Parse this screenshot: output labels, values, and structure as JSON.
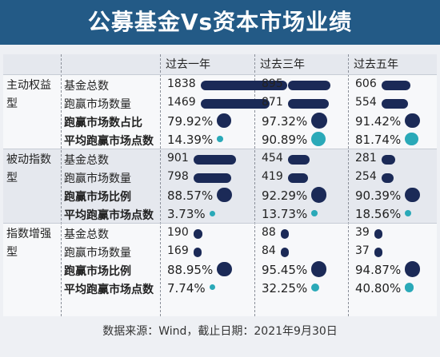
{
  "title": "公募基金Vs资本市场业绩",
  "source": "数据来源：Wind，截止日期：2021年9月30日",
  "chart_data": {
    "type": "table",
    "periods": [
      "过去一年",
      "过去三年",
      "过去五年"
    ],
    "groups": [
      {
        "name": "主动权益型",
        "rows": [
          {
            "metric": "基金总数",
            "kind": "count",
            "values": [
              1838,
              895,
              606
            ],
            "labels": [
              "1838",
              "895",
              "606"
            ]
          },
          {
            "metric": "跑赢市场数量",
            "kind": "count",
            "values": [
              1469,
              871,
              554
            ],
            "labels": [
              "1469",
              "871",
              "554"
            ]
          },
          {
            "metric": "跑赢市场数占比",
            "kind": "ratio",
            "values": [
              79.92,
              97.32,
              91.42
            ],
            "labels": [
              "79.92%",
              "97.32%",
              "91.42%"
            ]
          },
          {
            "metric": "平均跑赢市场点数",
            "kind": "points",
            "values": [
              14.39,
              90.89,
              81.74
            ],
            "labels": [
              "14.39%",
              "90.89%",
              "81.74%"
            ]
          }
        ]
      },
      {
        "name": "被动指数型",
        "rows": [
          {
            "metric": "基金总数",
            "kind": "count",
            "values": [
              901,
              454,
              281
            ],
            "labels": [
              "901",
              "454",
              "281"
            ]
          },
          {
            "metric": "跑赢市场数量",
            "kind": "count",
            "values": [
              798,
              419,
              254
            ],
            "labels": [
              "798",
              "419",
              "254"
            ]
          },
          {
            "metric": "跑赢市场比例",
            "kind": "ratio",
            "values": [
              88.57,
              92.29,
              90.39
            ],
            "labels": [
              "88.57%",
              "92.29%",
              "90.39%"
            ]
          },
          {
            "metric": "平均跑赢市场点数",
            "kind": "points",
            "values": [
              3.73,
              13.73,
              18.56
            ],
            "labels": [
              "3.73%",
              "13.73%",
              "18.56%"
            ]
          }
        ]
      },
      {
        "name": "指数增强型",
        "rows": [
          {
            "metric": "基金总数",
            "kind": "count",
            "values": [
              190,
              88,
              39
            ],
            "labels": [
              "190",
              "88",
              "39"
            ]
          },
          {
            "metric": "跑赢市场数量",
            "kind": "count",
            "values": [
              169,
              84,
              37
            ],
            "labels": [
              "169",
              "84",
              "37"
            ]
          },
          {
            "metric": "跑赢市场比例",
            "kind": "ratio",
            "values": [
              88.95,
              95.45,
              94.87
            ],
            "labels": [
              "88.95%",
              "95.45%",
              "94.87%"
            ]
          },
          {
            "metric": "平均跑赢市场点数",
            "kind": "points",
            "values": [
              7.74,
              32.25,
              40.8
            ],
            "labels": [
              "7.74%",
              "32.25%",
              "40.80%"
            ]
          }
        ]
      }
    ],
    "colors": {
      "bar": "#1b2a57",
      "ratio_dot": "#1b2a57",
      "points_dot": "#2aa9b8",
      "header": "#235a86"
    }
  }
}
